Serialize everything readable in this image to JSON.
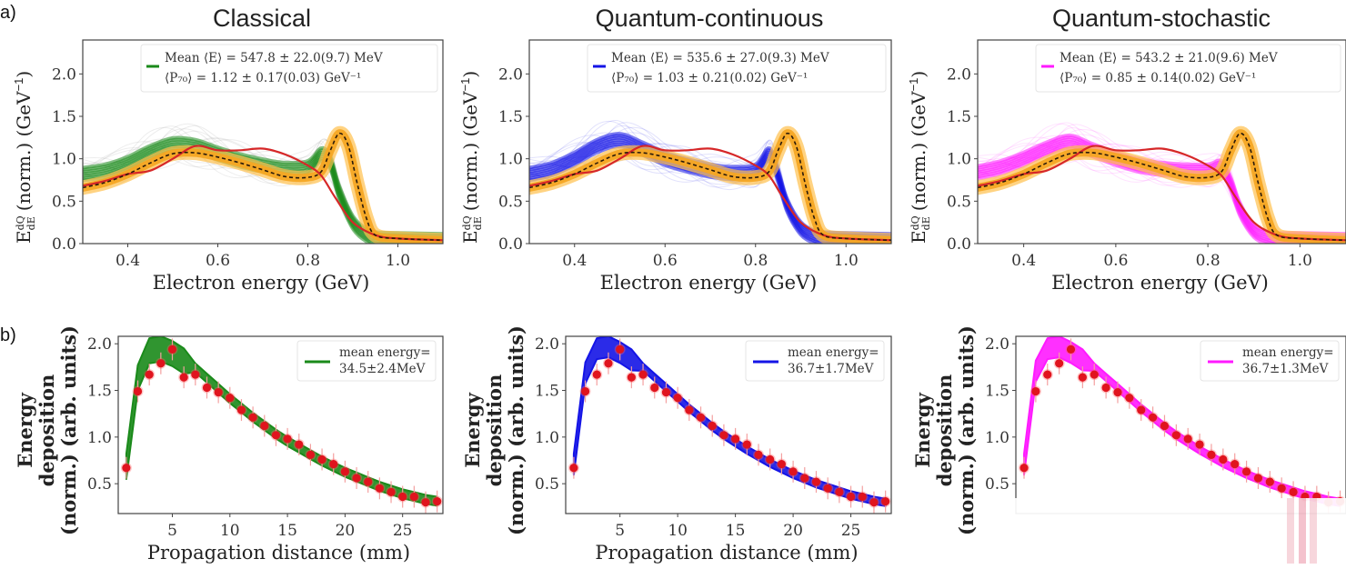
{
  "figure": {
    "panel_a_label": "a)",
    "panel_b_label": "b)"
  },
  "chart_data": [
    {
      "id": "a-classical",
      "type": "line",
      "title": "Classical",
      "xlabel": "Electron energy (GeV)",
      "ylabel": "E dQ/dE (norm.) (GeV⁻¹)",
      "ylabel_parts": {
        "prefix": "E",
        "frac_num": "dQ",
        "frac_den": "dE",
        "rest": "(norm.) (GeV",
        "sup": "−1",
        "close": ")"
      },
      "xlim": [
        0.3,
        1.1
      ],
      "ylim": [
        0.0,
        2.4
      ],
      "xticks": [
        "0.4",
        "0.6",
        "0.8",
        "1.0"
      ],
      "xtick_values": [
        0.4,
        0.6,
        0.8,
        1.0
      ],
      "yticks": [
        "0.0",
        "0.5",
        "1.0",
        "1.5",
        "2.0"
      ],
      "ytick_values": [
        0.0,
        0.5,
        1.0,
        1.5,
        2.0
      ],
      "accent": "#1a8a1a",
      "legend": {
        "line1": "Mean ⟨E⟩ = 547.8 ± 22.0(9.7) MeV",
        "line2": "⟨P₇₀⟩ = 1.12 ± 0.17(0.03) GeV⁻¹",
        "placement": "top-right"
      },
      "series": [
        {
          "name": "simulation ensemble (mean)",
          "color": "#1a8a1a",
          "x": [
            0.3,
            0.35,
            0.4,
            0.45,
            0.5,
            0.55,
            0.6,
            0.65,
            0.7,
            0.75,
            0.8,
            0.83,
            0.85,
            0.87,
            0.9,
            0.93,
            0.95,
            1.0,
            1.1
          ],
          "y": [
            0.82,
            0.86,
            0.95,
            1.08,
            1.17,
            1.15,
            1.06,
            0.98,
            0.92,
            0.88,
            0.9,
            1.05,
            0.95,
            0.6,
            0.25,
            0.1,
            0.06,
            0.05,
            0.04
          ]
        },
        {
          "name": "experiment (dashed, orange band)",
          "color": "#f5a623",
          "x": [
            0.3,
            0.35,
            0.4,
            0.45,
            0.5,
            0.55,
            0.6,
            0.65,
            0.7,
            0.75,
            0.8,
            0.83,
            0.85,
            0.87,
            0.89,
            0.91,
            0.93,
            0.95,
            1.0,
            1.1
          ],
          "y": [
            0.66,
            0.72,
            0.82,
            0.95,
            1.06,
            1.07,
            1.02,
            0.95,
            0.87,
            0.79,
            0.78,
            0.85,
            1.1,
            1.3,
            1.15,
            0.7,
            0.3,
            0.1,
            0.06,
            0.04
          ]
        },
        {
          "name": "reference (red)",
          "color": "#d62728",
          "x": [
            0.3,
            0.35,
            0.4,
            0.45,
            0.5,
            0.55,
            0.6,
            0.65,
            0.7,
            0.75,
            0.8,
            0.83,
            0.86,
            0.9,
            0.95,
            1.0,
            1.1
          ],
          "y": [
            0.68,
            0.74,
            0.82,
            0.86,
            1.0,
            1.15,
            1.1,
            1.1,
            1.12,
            1.05,
            0.92,
            0.8,
            0.55,
            0.25,
            0.1,
            0.06,
            0.04
          ]
        }
      ]
    },
    {
      "id": "a-quantum-continuous",
      "type": "line",
      "title": "Quantum-continuous",
      "xlabel": "Electron energy (GeV)",
      "ylabel": "E dQ/dE (norm.) (GeV⁻¹)",
      "ylabel_parts": {
        "prefix": "E",
        "frac_num": "dQ",
        "frac_den": "dE",
        "rest": "(norm.) (GeV",
        "sup": "−1",
        "close": ")"
      },
      "xlim": [
        0.3,
        1.1
      ],
      "ylim": [
        0.0,
        2.4
      ],
      "xticks": [
        "0.4",
        "0.6",
        "0.8",
        "1.0"
      ],
      "xtick_values": [
        0.4,
        0.6,
        0.8,
        1.0
      ],
      "yticks": [
        "0.0",
        "0.5",
        "1.0",
        "1.5",
        "2.0"
      ],
      "ytick_values": [
        0.0,
        0.5,
        1.0,
        1.5,
        2.0
      ],
      "accent": "#1414e6",
      "legend": {
        "line1": "Mean ⟨E⟩ = 535.6 ± 27.0(9.3) MeV",
        "line2": "⟨P₇₀⟩ = 1.03 ± 0.21(0.02) GeV⁻¹",
        "placement": "top-right"
      },
      "series": [
        {
          "name": "simulation ensemble (mean)",
          "color": "#1414e6",
          "x": [
            0.3,
            0.35,
            0.4,
            0.45,
            0.5,
            0.55,
            0.6,
            0.65,
            0.7,
            0.75,
            0.8,
            0.83,
            0.85,
            0.87,
            0.9,
            0.93,
            0.95,
            1.0,
            1.1
          ],
          "y": [
            0.82,
            0.88,
            1.0,
            1.15,
            1.22,
            1.12,
            1.0,
            0.92,
            0.86,
            0.83,
            0.86,
            1.05,
            0.8,
            0.45,
            0.18,
            0.08,
            0.06,
            0.05,
            0.04
          ]
        },
        {
          "name": "experiment (dashed, orange band)",
          "color": "#f5a623",
          "x": [
            0.3,
            0.35,
            0.4,
            0.45,
            0.5,
            0.55,
            0.6,
            0.65,
            0.7,
            0.75,
            0.8,
            0.83,
            0.85,
            0.87,
            0.89,
            0.91,
            0.93,
            0.95,
            1.0,
            1.1
          ],
          "y": [
            0.66,
            0.72,
            0.82,
            0.95,
            1.06,
            1.07,
            1.02,
            0.95,
            0.87,
            0.79,
            0.78,
            0.85,
            1.1,
            1.3,
            1.15,
            0.7,
            0.3,
            0.1,
            0.06,
            0.04
          ]
        },
        {
          "name": "reference (red)",
          "color": "#d62728",
          "x": [
            0.3,
            0.35,
            0.4,
            0.45,
            0.5,
            0.55,
            0.6,
            0.65,
            0.7,
            0.75,
            0.8,
            0.83,
            0.86,
            0.9,
            0.95,
            1.0,
            1.1
          ],
          "y": [
            0.68,
            0.74,
            0.82,
            0.86,
            1.0,
            1.15,
            1.1,
            1.1,
            1.12,
            1.05,
            0.92,
            0.8,
            0.55,
            0.25,
            0.1,
            0.06,
            0.04
          ]
        }
      ]
    },
    {
      "id": "a-quantum-stochastic",
      "type": "line",
      "title": "Quantum-stochastic",
      "xlabel": "Electron energy (GeV)",
      "ylabel": "E dQ/dE (norm.) (GeV⁻¹)",
      "ylabel_parts": {
        "prefix": "E",
        "frac_num": "dQ",
        "frac_den": "dE",
        "rest": "(norm.) (GeV",
        "sup": "−1",
        "close": ")"
      },
      "xlim": [
        0.3,
        1.1
      ],
      "ylim": [
        0.0,
        2.4
      ],
      "xticks": [
        "0.4",
        "0.6",
        "0.8",
        "1.0"
      ],
      "xtick_values": [
        0.4,
        0.6,
        0.8,
        1.0
      ],
      "yticks": [
        "0.0",
        "0.5",
        "1.0",
        "1.5",
        "2.0"
      ],
      "ytick_values": [
        0.0,
        0.5,
        1.0,
        1.5,
        2.0
      ],
      "accent": "#ff1aff",
      "legend": {
        "line1": "Mean ⟨E⟩ = 543.2 ± 21.0(9.6) MeV",
        "line2": "⟨P₇₀⟩ = 0.85 ± 0.14(0.02) GeV⁻¹",
        "placement": "top-right"
      },
      "series": [
        {
          "name": "simulation ensemble (mean)",
          "color": "#ff1aff",
          "x": [
            0.3,
            0.35,
            0.4,
            0.45,
            0.5,
            0.55,
            0.6,
            0.65,
            0.7,
            0.75,
            0.8,
            0.83,
            0.85,
            0.87,
            0.9,
            0.93,
            0.95,
            1.0,
            1.1
          ],
          "y": [
            0.84,
            0.9,
            1.0,
            1.12,
            1.2,
            1.1,
            1.0,
            0.92,
            0.88,
            0.86,
            0.86,
            0.9,
            0.7,
            0.4,
            0.15,
            0.07,
            0.05,
            0.05,
            0.04
          ]
        },
        {
          "name": "experiment (dashed, orange band)",
          "color": "#f5a623",
          "x": [
            0.3,
            0.35,
            0.4,
            0.45,
            0.5,
            0.55,
            0.6,
            0.65,
            0.7,
            0.75,
            0.8,
            0.83,
            0.85,
            0.87,
            0.89,
            0.91,
            0.93,
            0.95,
            1.0,
            1.1
          ],
          "y": [
            0.66,
            0.72,
            0.82,
            0.95,
            1.06,
            1.07,
            1.02,
            0.95,
            0.87,
            0.79,
            0.78,
            0.85,
            1.1,
            1.3,
            1.15,
            0.7,
            0.3,
            0.1,
            0.06,
            0.04
          ]
        },
        {
          "name": "reference (red)",
          "color": "#d62728",
          "x": [
            0.3,
            0.35,
            0.4,
            0.45,
            0.5,
            0.55,
            0.6,
            0.65,
            0.7,
            0.75,
            0.8,
            0.83,
            0.86,
            0.9,
            0.95,
            1.0,
            1.1
          ],
          "y": [
            0.68,
            0.74,
            0.82,
            0.86,
            1.0,
            1.15,
            1.1,
            1.1,
            1.12,
            1.05,
            0.92,
            0.8,
            0.55,
            0.25,
            0.1,
            0.06,
            0.04
          ]
        }
      ]
    },
    {
      "id": "b-classical",
      "type": "line",
      "xlabel": "Propagation distance (mm)",
      "ylabel_lines": [
        "Energy",
        "deposition",
        "(norm.) (arb. units)"
      ],
      "xlim": [
        0.3,
        28.5
      ],
      "ylim": [
        0.18,
        2.08
      ],
      "xticks": [
        "5",
        "10",
        "15",
        "20",
        "25"
      ],
      "xtick_values": [
        5,
        10,
        15,
        20,
        25
      ],
      "yticks": [
        "0.5",
        "1.0",
        "1.5",
        "2.0"
      ],
      "ytick_values": [
        0.5,
        1.0,
        1.5,
        2.0
      ],
      "accent": "#1a8a1a",
      "legend": {
        "line1": "mean energy=",
        "line2": "34.5±2.4MeV",
        "placement": "top-right"
      },
      "series": [
        {
          "name": "simulation band",
          "color": "#1a8a1a",
          "x": [
            1,
            2,
            3,
            4,
            5,
            6,
            7,
            8,
            9,
            10,
            11,
            12,
            13,
            14,
            15,
            16,
            17,
            18,
            19,
            20,
            21,
            22,
            23,
            24,
            25,
            26,
            27,
            28
          ],
          "y": [
            0.7,
            1.65,
            1.94,
            1.96,
            1.91,
            1.83,
            1.73,
            1.62,
            1.51,
            1.4,
            1.3,
            1.2,
            1.11,
            1.02,
            0.94,
            0.87,
            0.8,
            0.73,
            0.67,
            0.61,
            0.56,
            0.51,
            0.46,
            0.42,
            0.38,
            0.35,
            0.32,
            0.3
          ],
          "band": 0.06
        },
        {
          "name": "experiment",
          "color": "#e0141e",
          "kind": "scatter",
          "x": [
            1,
            2,
            3,
            4,
            5,
            6,
            7,
            8,
            9,
            10,
            11,
            12,
            13,
            14,
            15,
            16,
            17,
            18,
            19,
            20,
            21,
            22,
            23,
            24,
            25,
            26,
            27,
            28
          ],
          "y": [
            0.67,
            1.49,
            1.67,
            1.79,
            1.94,
            1.64,
            1.67,
            1.53,
            1.48,
            1.42,
            1.29,
            1.21,
            1.12,
            1.02,
            0.98,
            0.92,
            0.81,
            0.76,
            0.71,
            0.63,
            0.56,
            0.52,
            0.45,
            0.41,
            0.36,
            0.36,
            0.3,
            0.31
          ]
        }
      ]
    },
    {
      "id": "b-quantum-continuous",
      "type": "line",
      "xlabel": "Propagation distance (mm)",
      "ylabel_lines": [
        "Energy",
        "deposition",
        "(norm.) (arb. units)"
      ],
      "xlim": [
        0.3,
        28.5
      ],
      "ylim": [
        0.18,
        2.08
      ],
      "xticks": [
        "5",
        "10",
        "15",
        "20",
        "25"
      ],
      "xtick_values": [
        5,
        10,
        15,
        20,
        25
      ],
      "yticks": [
        "0.5",
        "1.0",
        "1.5",
        "2.0"
      ],
      "ytick_values": [
        0.5,
        1.0,
        1.5,
        2.0
      ],
      "accent": "#1414e6",
      "legend": {
        "line1": "mean energy=",
        "line2": "36.7±1.7MeV",
        "placement": "top-right"
      },
      "series": [
        {
          "name": "simulation band",
          "color": "#1414e6",
          "x": [
            1,
            2,
            3,
            4,
            5,
            6,
            7,
            8,
            9,
            10,
            11,
            12,
            13,
            14,
            15,
            16,
            17,
            18,
            19,
            20,
            21,
            22,
            23,
            24,
            25,
            26,
            27,
            28
          ],
          "y": [
            0.72,
            1.7,
            1.96,
            1.98,
            1.92,
            1.84,
            1.74,
            1.63,
            1.52,
            1.41,
            1.3,
            1.2,
            1.1,
            1.01,
            0.93,
            0.85,
            0.78,
            0.71,
            0.65,
            0.59,
            0.54,
            0.49,
            0.45,
            0.41,
            0.37,
            0.34,
            0.31,
            0.29
          ],
          "band": 0.05
        },
        {
          "name": "experiment",
          "color": "#e0141e",
          "kind": "scatter",
          "x": [
            1,
            2,
            3,
            4,
            5,
            6,
            7,
            8,
            9,
            10,
            11,
            12,
            13,
            14,
            15,
            16,
            17,
            18,
            19,
            20,
            21,
            22,
            23,
            24,
            25,
            26,
            27,
            28
          ],
          "y": [
            0.67,
            1.49,
            1.67,
            1.79,
            1.94,
            1.64,
            1.67,
            1.53,
            1.48,
            1.42,
            1.29,
            1.21,
            1.12,
            1.02,
            0.98,
            0.92,
            0.81,
            0.76,
            0.71,
            0.63,
            0.56,
            0.52,
            0.45,
            0.41,
            0.36,
            0.36,
            0.3,
            0.31
          ]
        }
      ]
    },
    {
      "id": "b-quantum-stochastic",
      "type": "line",
      "xlabel": "",
      "ylabel_lines": [
        "Energy",
        "deposition",
        "(norm.) (arb. units)"
      ],
      "xlim": [
        0.3,
        28.5
      ],
      "ylim": [
        0.18,
        2.08
      ],
      "xticks": [],
      "xtick_values": [],
      "yticks": [
        "0.5",
        "1.0",
        "1.5",
        "2.0"
      ],
      "ytick_values": [
        0.5,
        1.0,
        1.5,
        2.0
      ],
      "accent": "#ff1aff",
      "legend": {
        "line1": "mean energy=",
        "line2": "36.7±1.3MeV",
        "placement": "top-right"
      },
      "series": [
        {
          "name": "simulation band",
          "color": "#ff1aff",
          "x": [
            1,
            2,
            3,
            4,
            5,
            6,
            7,
            8,
            9,
            10,
            11,
            12,
            13,
            14,
            15,
            16,
            17,
            18,
            19,
            20,
            21,
            22,
            23,
            24,
            25,
            26,
            27,
            28
          ],
          "y": [
            0.72,
            1.72,
            1.96,
            1.98,
            1.92,
            1.84,
            1.74,
            1.63,
            1.52,
            1.41,
            1.3,
            1.2,
            1.1,
            1.01,
            0.93,
            0.85,
            0.78,
            0.71,
            0.65,
            0.59,
            0.54,
            0.49,
            0.45,
            0.41,
            0.37,
            0.34,
            0.31,
            0.29
          ],
          "band": 0.05
        },
        {
          "name": "experiment",
          "color": "#e0141e",
          "kind": "scatter",
          "x": [
            1,
            2,
            3,
            4,
            5,
            6,
            7,
            8,
            9,
            10,
            11,
            12,
            13,
            14,
            15,
            16,
            17,
            18,
            19,
            20,
            21,
            22,
            23,
            24,
            25,
            26,
            27,
            28
          ],
          "y": [
            0.67,
            1.49,
            1.67,
            1.79,
            1.94,
            1.64,
            1.67,
            1.53,
            1.48,
            1.42,
            1.29,
            1.21,
            1.12,
            1.02,
            0.98,
            0.92,
            0.81,
            0.76,
            0.71,
            0.63,
            0.56,
            0.52,
            0.45,
            0.41,
            0.36,
            0.36,
            0.3,
            0.31
          ]
        }
      ]
    }
  ]
}
